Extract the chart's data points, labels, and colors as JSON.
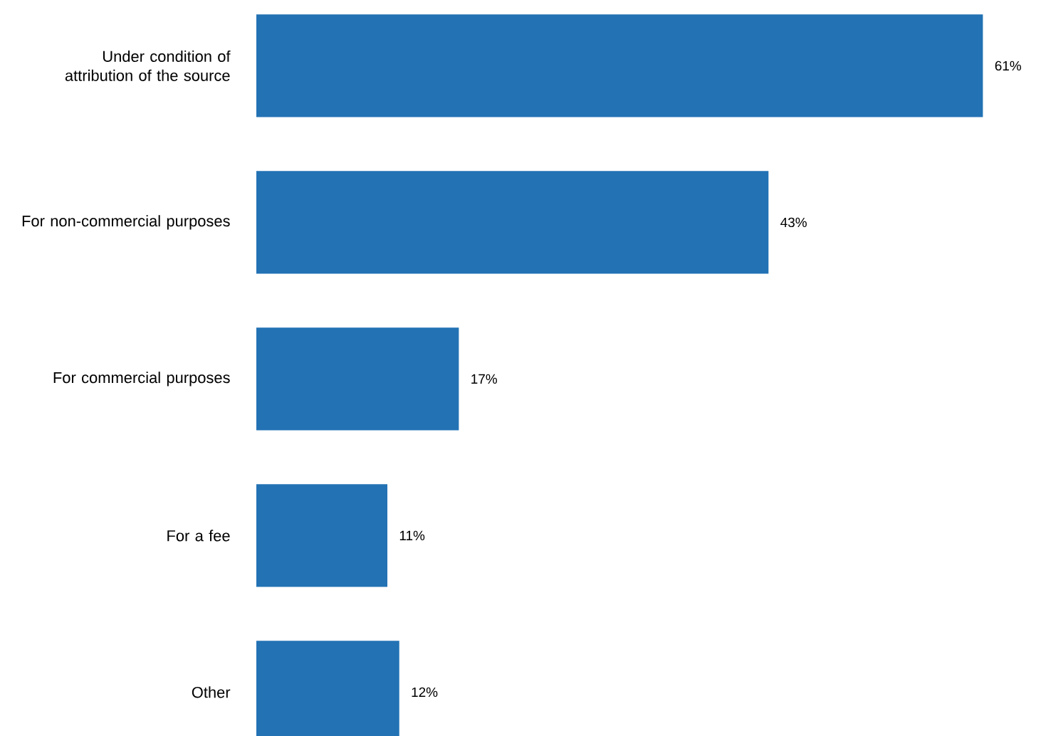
{
  "chart_data": {
    "type": "bar",
    "orientation": "horizontal",
    "categories": [
      "Under condition of attribution of the source",
      "For non-commercial purposes",
      "For commercial purposes",
      "For a fee",
      "Other"
    ],
    "values": [
      61,
      43,
      17,
      11,
      12
    ],
    "value_labels": [
      "61%",
      "43%",
      "17%",
      "11%",
      "12%"
    ],
    "color": "#2272b4"
  }
}
